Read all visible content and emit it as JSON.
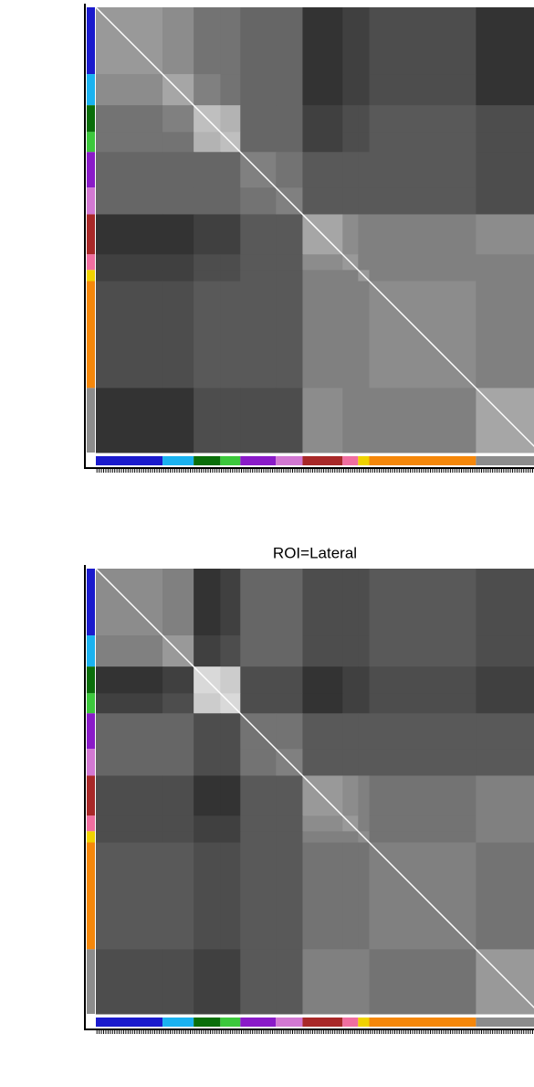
{
  "chart_data": [
    {
      "type": "heatmap",
      "groups": [
        {
          "color": "#1a1acd",
          "size": 30
        },
        {
          "color": "#1ab2f0",
          "size": 14
        },
        {
          "color": "#0a6e0a",
          "size": 12
        },
        {
          "color": "#3cc83c",
          "size": 9
        },
        {
          "color": "#8a1ac8",
          "size": 16
        },
        {
          "color": "#d278d2",
          "size": 12
        },
        {
          "color": "#a82828",
          "size": 18
        },
        {
          "color": "#f06ea0",
          "size": 7
        },
        {
          "color": "#f0d200",
          "size": 5
        },
        {
          "color": "#f5870a",
          "size": 48
        },
        {
          "color": "#8c8c8c",
          "size": 29
        }
      ],
      "diagonal": 1,
      "matrix": [
        [
          0.6,
          0.55,
          0.45,
          0.45,
          0.4,
          0.4,
          0.2,
          0.25,
          0.25,
          0.3,
          0.2
        ],
        [
          0.55,
          0.65,
          0.5,
          0.45,
          0.4,
          0.4,
          0.2,
          0.25,
          0.25,
          0.3,
          0.2
        ],
        [
          0.45,
          0.5,
          0.75,
          0.7,
          0.4,
          0.4,
          0.25,
          0.3,
          0.3,
          0.35,
          0.3
        ],
        [
          0.45,
          0.45,
          0.7,
          0.75,
          0.4,
          0.4,
          0.25,
          0.3,
          0.3,
          0.35,
          0.3
        ],
        [
          0.4,
          0.4,
          0.4,
          0.4,
          0.5,
          0.45,
          0.35,
          0.35,
          0.35,
          0.35,
          0.3
        ],
        [
          0.4,
          0.4,
          0.4,
          0.4,
          0.45,
          0.5,
          0.35,
          0.35,
          0.35,
          0.35,
          0.3
        ],
        [
          0.2,
          0.2,
          0.25,
          0.25,
          0.35,
          0.35,
          0.65,
          0.55,
          0.5,
          0.5,
          0.55
        ],
        [
          0.25,
          0.25,
          0.3,
          0.3,
          0.35,
          0.35,
          0.55,
          0.6,
          0.5,
          0.5,
          0.5
        ],
        [
          0.25,
          0.25,
          0.3,
          0.3,
          0.35,
          0.35,
          0.5,
          0.5,
          0.6,
          0.5,
          0.5
        ],
        [
          0.3,
          0.3,
          0.35,
          0.35,
          0.35,
          0.35,
          0.5,
          0.5,
          0.5,
          0.55,
          0.5
        ],
        [
          0.2,
          0.2,
          0.3,
          0.3,
          0.3,
          0.3,
          0.55,
          0.5,
          0.5,
          0.5,
          0.65
        ]
      ]
    },
    {
      "type": "heatmap",
      "title": "ROI=Lateral",
      "groups": [
        {
          "color": "#1a1acd",
          "size": 30
        },
        {
          "color": "#1ab2f0",
          "size": 14
        },
        {
          "color": "#0a6e0a",
          "size": 12
        },
        {
          "color": "#3cc83c",
          "size": 9
        },
        {
          "color": "#8a1ac8",
          "size": 16
        },
        {
          "color": "#d278d2",
          "size": 12
        },
        {
          "color": "#a82828",
          "size": 18
        },
        {
          "color": "#f06ea0",
          "size": 7
        },
        {
          "color": "#f0d200",
          "size": 5
        },
        {
          "color": "#f5870a",
          "size": 48
        },
        {
          "color": "#8c8c8c",
          "size": 29
        }
      ],
      "diagonal": 1,
      "matrix": [
        [
          0.55,
          0.5,
          0.2,
          0.25,
          0.4,
          0.4,
          0.3,
          0.3,
          0.3,
          0.35,
          0.3
        ],
        [
          0.5,
          0.6,
          0.25,
          0.3,
          0.4,
          0.4,
          0.3,
          0.3,
          0.3,
          0.35,
          0.3
        ],
        [
          0.2,
          0.25,
          0.85,
          0.8,
          0.3,
          0.3,
          0.2,
          0.25,
          0.25,
          0.3,
          0.25
        ],
        [
          0.25,
          0.3,
          0.8,
          0.85,
          0.3,
          0.3,
          0.2,
          0.25,
          0.25,
          0.3,
          0.25
        ],
        [
          0.4,
          0.4,
          0.3,
          0.3,
          0.45,
          0.45,
          0.35,
          0.35,
          0.35,
          0.35,
          0.35
        ],
        [
          0.4,
          0.4,
          0.3,
          0.3,
          0.45,
          0.5,
          0.35,
          0.35,
          0.35,
          0.35,
          0.35
        ],
        [
          0.3,
          0.3,
          0.2,
          0.2,
          0.35,
          0.35,
          0.6,
          0.55,
          0.5,
          0.45,
          0.5
        ],
        [
          0.3,
          0.3,
          0.25,
          0.25,
          0.35,
          0.35,
          0.55,
          0.6,
          0.5,
          0.45,
          0.5
        ],
        [
          0.3,
          0.3,
          0.25,
          0.25,
          0.35,
          0.35,
          0.5,
          0.5,
          0.55,
          0.45,
          0.5
        ],
        [
          0.35,
          0.35,
          0.3,
          0.3,
          0.35,
          0.35,
          0.45,
          0.45,
          0.45,
          0.5,
          0.45
        ],
        [
          0.3,
          0.3,
          0.25,
          0.25,
          0.35,
          0.35,
          0.5,
          0.5,
          0.5,
          0.45,
          0.6
        ]
      ]
    }
  ]
}
